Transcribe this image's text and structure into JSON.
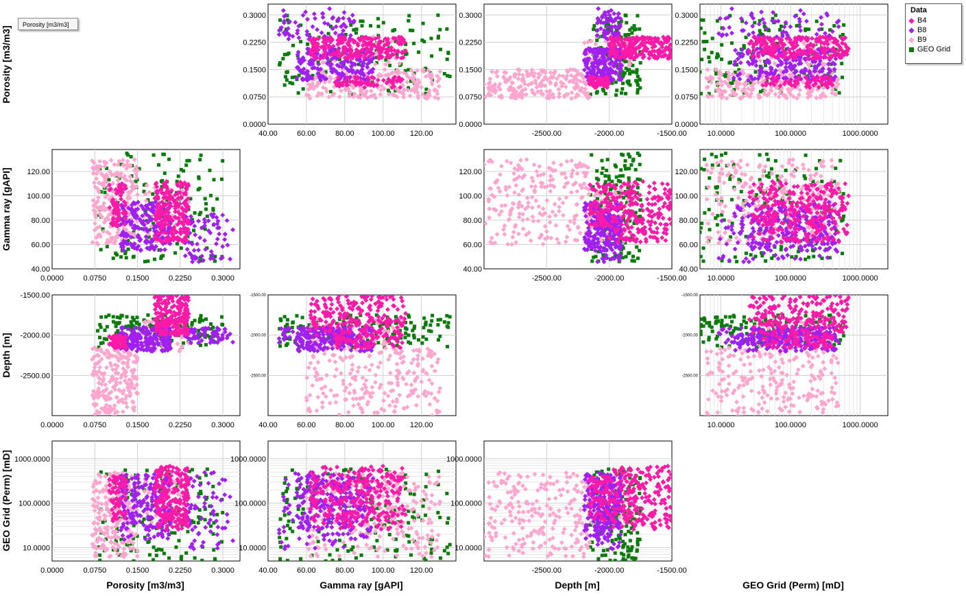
{
  "tooltip": "Porosity [m3/m3]",
  "legend": {
    "title": "Data",
    "items": [
      {
        "label": "B4",
        "color": "#ff1aa8",
        "marker": "diamond"
      },
      {
        "label": "B8",
        "color": "#a020f0",
        "marker": "diamond"
      },
      {
        "label": "B9",
        "color": "#ffa6cf",
        "marker": "diamond"
      },
      {
        "label": "GEO Grid",
        "color": "#0a7a0a",
        "marker": "square"
      }
    ]
  },
  "chart_data": {
    "type": "scatter",
    "variables": [
      {
        "key": "por",
        "label": "Porosity [m3/m3]",
        "range": [
          0,
          0.33
        ],
        "scale": "linear",
        "ticks": [
          "0.0000",
          "0.0750",
          "0.1500",
          "0.2250",
          "0.3000"
        ],
        "tick_values": [
          0,
          0.075,
          0.15,
          0.225,
          0.3
        ]
      },
      {
        "key": "gr",
        "label": "Gamma ray [gAPI]",
        "range": [
          40,
          138
        ],
        "scale": "linear",
        "ticks": [
          "40.00",
          "60.00",
          "80.00",
          "100.00",
          "120.00"
        ],
        "tick_values": [
          40,
          60,
          80,
          100,
          120
        ]
      },
      {
        "key": "dep",
        "label": "Depth [m]",
        "range": [
          -3000,
          -1500
        ],
        "scale": "linear",
        "ticks": [
          "-2500.00",
          "-2000.00",
          "-1500.00"
        ],
        "tick_values": [
          -2500,
          -2000,
          -1500
        ],
        "y_ticks": [
          "-1500.00",
          "-2000.00",
          "-2500.00"
        ],
        "y_tick_values": [
          -1500,
          -2000,
          -2500
        ]
      },
      {
        "key": "perm",
        "label": "GEO Grid (Perm) [mD]",
        "range": [
          5,
          2500
        ],
        "scale": "log",
        "ticks": [
          "10.0000",
          "100.0000",
          "1000.0000"
        ],
        "tick_values": [
          10,
          100,
          1000
        ]
      }
    ],
    "series": [
      {
        "name": "B4",
        "clusters": [
          {
            "por": [
              0.18,
              0.24
            ],
            "gr": [
              62,
              112
            ],
            "dep": [
              -2000,
              -1500
            ],
            "perm": [
              25,
              700
            ],
            "n": 220
          },
          {
            "por": [
              0.1,
              0.13
            ],
            "gr": [
              75,
              110
            ],
            "dep": [
              -2160,
              -2000
            ],
            "perm": [
              40,
              400
            ],
            "n": 70
          }
        ]
      },
      {
        "name": "B8",
        "clusters": [
          {
            "por": [
              0.12,
              0.21
            ],
            "gr": [
              55,
              95
            ],
            "dep": [
              -2200,
              -1900
            ],
            "perm": [
              15,
              450
            ],
            "n": 200
          },
          {
            "por": [
              0.23,
              0.32
            ],
            "gr": [
              45,
              85
            ],
            "dep": [
              -2100,
              -1900
            ],
            "perm": [
              8,
              500
            ],
            "n": 70
          }
        ]
      },
      {
        "name": "B9",
        "clusters": [
          {
            "por": [
              0.07,
              0.15
            ],
            "gr": [
              60,
              130
            ],
            "dep": [
              -3000,
              -2150
            ],
            "perm": [
              6,
              500
            ],
            "n": 220
          },
          {
            "por": [
              0.16,
              0.24
            ],
            "gr": [
              60,
              110
            ],
            "dep": [
              -2200,
              -1800
            ],
            "perm": [
              30,
              400
            ],
            "n": 60
          }
        ]
      },
      {
        "name": "GEO Grid",
        "clusters": [
          {
            "por": [
              0.08,
              0.3
            ],
            "gr": [
              45,
              135
            ],
            "dep": [
              -2150,
              -1750
            ],
            "perm": [
              5,
              600
            ],
            "n": 160
          }
        ]
      }
    ],
    "grid": true,
    "legend_position": "top-right"
  }
}
